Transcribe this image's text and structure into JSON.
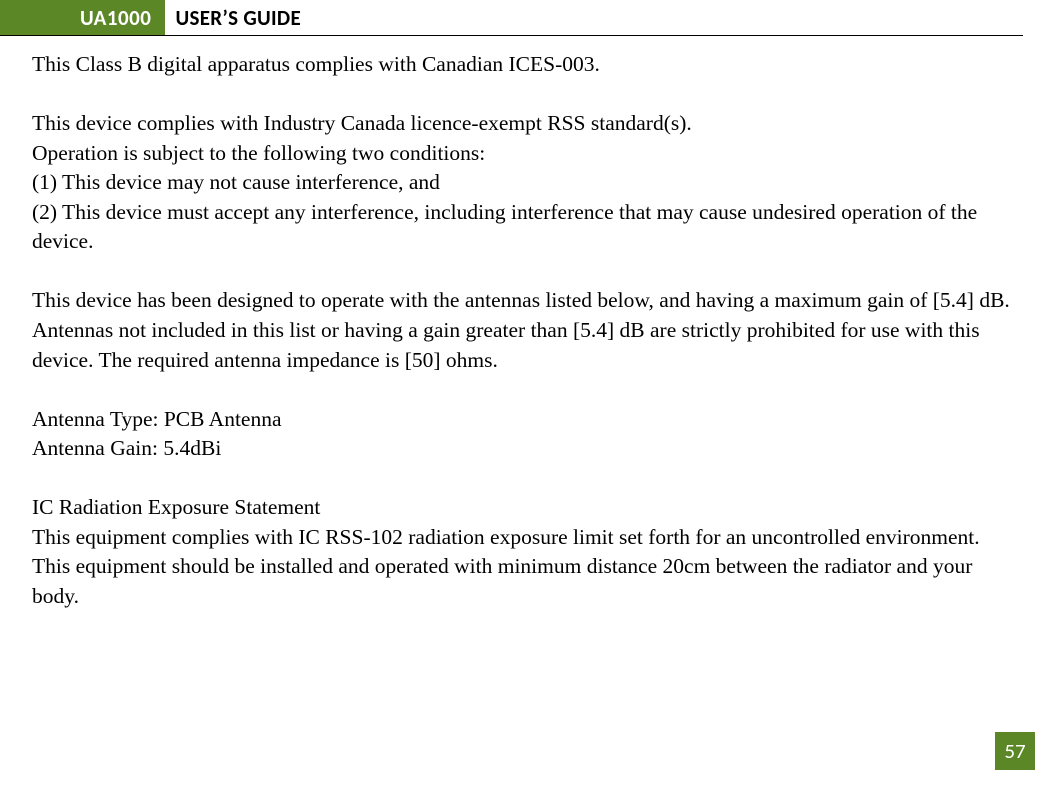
{
  "header": {
    "badge": "UA1000",
    "title": "USER’S GUIDE"
  },
  "body": {
    "p1": "This Class B digital apparatus complies with Canadian ICES-003.",
    "p2": "This device complies with Industry Canada licence-exempt RSS standard(s).",
    "p3": "Operation is subject to the following two conditions:",
    "p4": "(1) This device may not cause interference, and",
    "p5": "(2) This device must accept any interference, including interference that may cause undesired operation of the device.",
    "p6": "This device has been designed to operate with the antennas listed below, and having a maximum gain of [5.4] dB. Antennas not included in this list or having a gain greater than [5.4] dB are strictly prohibited for use with this device. The required antenna impedance is [50] ohms.",
    "p7": "Antenna Type: PCB Antenna",
    "p8": "Antenna Gain: 5.4dBi",
    "p9": "IC Radiation Exposure Statement",
    "p10": "This equipment complies with IC RSS-102 radiation exposure limit set forth for an uncontrolled environment. This equipment should be installed and operated with minimum distance 20cm between the radiator and your body."
  },
  "pageNumber": "57",
  "colors": {
    "accent": "#5b8727",
    "text": "#000000",
    "bg": "#ffffff"
  }
}
